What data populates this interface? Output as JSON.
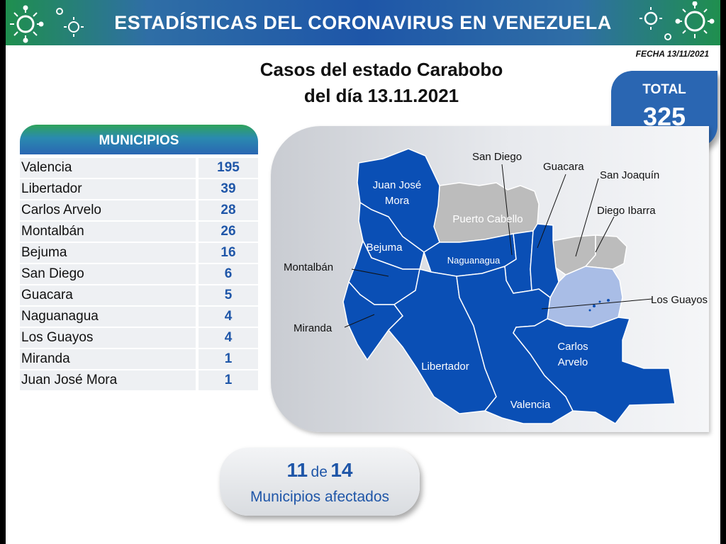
{
  "banner": {
    "title": "ESTADÍSTICAS DEL CORONAVIRUS EN VENEZUELA"
  },
  "date_label": "FECHA 13/11/2021",
  "title": {
    "line1": "Casos del estado Carabobo",
    "line2": "del día 13.11.2021"
  },
  "total": {
    "label": "TOTAL",
    "value": "325"
  },
  "municipios": {
    "header": "MUNICIPIOS",
    "rows": [
      {
        "name": "Valencia",
        "value": "195"
      },
      {
        "name": "Libertador",
        "value": "39"
      },
      {
        "name": "Carlos Arvelo",
        "value": "28"
      },
      {
        "name": "Montalbán",
        "value": "26"
      },
      {
        "name": "Bejuma",
        "value": "16"
      },
      {
        "name": "San Diego",
        "value": "6"
      },
      {
        "name": "Guacara",
        "value": "5"
      },
      {
        "name": "Naguanagua",
        "value": "4"
      },
      {
        "name": "Los Guayos",
        "value": "4"
      },
      {
        "name": "Miranda",
        "value": "1"
      },
      {
        "name": "Juan José Mora",
        "value": "1"
      }
    ]
  },
  "map": {
    "colors": {
      "affected": "#0a4fb5",
      "unaffected": "#bcbcbc",
      "highlight": "#a9bde6"
    },
    "labels": {
      "juan_jose_mora": [
        "Juan José",
        "Mora"
      ],
      "puerto_cabello": "Puerto Cabello",
      "bejuma": "Bejuma",
      "naguanagua": "Naguanagua",
      "montalban": "Montalbán",
      "miranda": "Miranda",
      "libertador": "Libertador",
      "valencia": "Valencia",
      "carlos_arvelo": [
        "Carlos",
        "Arvelo"
      ],
      "san_diego": "San Diego",
      "guacara": "Guacara",
      "san_joaquin": "San Joaquín",
      "diego_ibarra": "Diego Ibarra",
      "los_guayos": "Los Guayos"
    }
  },
  "affected": {
    "count": "11",
    "word": "de",
    "total": "14",
    "label": "Municipios afectados"
  },
  "colors": {
    "brand_blue": "#1f56a8",
    "brand_green": "#2fa35a",
    "table_bg": "#eef0f3"
  }
}
